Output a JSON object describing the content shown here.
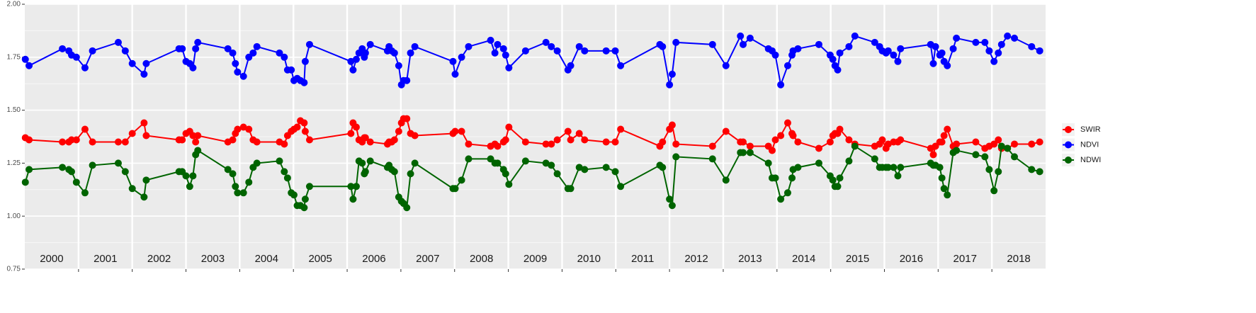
{
  "chart_data": {
    "type": "line",
    "xlim": [
      2000,
      2019
    ],
    "xticks": [
      2001,
      2002,
      2003,
      2004,
      2005,
      2006,
      2007,
      2008,
      2009,
      2010,
      2011,
      2012,
      2013,
      2014,
      2015,
      2016,
      2017,
      2018
    ],
    "year_labels": [
      "2000",
      "2001",
      "2002",
      "2003",
      "2004",
      "2005",
      "2006",
      "2007",
      "2008",
      "2009",
      "2010",
      "2011",
      "2012",
      "2013",
      "2014",
      "2015",
      "2016",
      "2017",
      "2018"
    ],
    "ylim": [
      0.75,
      2
    ],
    "yticks": [
      {
        "value": 0.75,
        "label": "0.75"
      },
      {
        "value": 1,
        "label": "1.00"
      },
      {
        "value": 1.25,
        "label": "1.25"
      },
      {
        "value": 1.5,
        "label": "1.50"
      },
      {
        "value": 1.75,
        "label": "1.75"
      },
      {
        "value": 2,
        "label": "2.00"
      }
    ],
    "grid": true,
    "legend": "right",
    "x": [
      2000.01,
      2000.08,
      2000.7,
      2000.82,
      2000.87,
      2000.96,
      2001.12,
      2001.26,
      2001.74,
      2001.87,
      2002.0,
      2002.22,
      2002.26,
      2002.87,
      2002.93,
      2003.0,
      2003.07,
      2003.13,
      2003.18,
      2003.22,
      2003.78,
      2003.87,
      2003.92,
      2003.96,
      2004.07,
      2004.17,
      2004.25,
      2004.32,
      2004.74,
      2004.83,
      2004.89,
      2004.96,
      2005.01,
      2005.07,
      2005.13,
      2005.2,
      2005.22,
      2005.3,
      2006.07,
      2006.11,
      2006.17,
      2006.22,
      2006.28,
      2006.32,
      2006.34,
      2006.43,
      2006.75,
      2006.78,
      2006.83,
      2006.88,
      2006.96,
      2007.01,
      2007.05,
      2007.11,
      2007.18,
      2007.26,
      2007.97,
      2008.01,
      2008.13,
      2008.26,
      2008.67,
      2008.75,
      2008.8,
      2008.91,
      2008.95,
      2009.01,
      2009.32,
      2009.7,
      2009.8,
      2009.91,
      2010.11,
      2010.16,
      2010.32,
      2010.42,
      2010.82,
      2010.99,
      2011.09,
      2011.82,
      2011.87,
      2012.0,
      2012.05,
      2012.12,
      2012.8,
      2013.05,
      2013.32,
      2013.37,
      2013.5,
      2013.84,
      2013.91,
      2013.97,
      2014.07,
      2014.2,
      2014.28,
      2014.3,
      2014.39,
      2014.78,
      2014.99,
      2015.04,
      2015.08,
      2015.13,
      2015.17,
      2015.34,
      2015.45,
      2015.82,
      2015.91,
      2015.96,
      2016.03,
      2016.07,
      2016.17,
      2016.25,
      2016.3,
      2016.86,
      2016.91,
      2016.95,
      2017.03,
      2017.07,
      2017.11,
      2017.17,
      2017.28,
      2017.34,
      2017.7,
      2017.87,
      2017.95,
      2018.04,
      2018.12,
      2018.18,
      2018.29,
      2018.42,
      2018.74,
      2018.89
    ],
    "series": [
      {
        "name": "SWIR",
        "color": "#ff0000",
        "values": [
          1.37,
          1.36,
          1.35,
          1.35,
          1.36,
          1.36,
          1.41,
          1.35,
          1.35,
          1.35,
          1.39,
          1.44,
          1.38,
          1.36,
          1.36,
          1.39,
          1.4,
          1.38,
          1.35,
          1.38,
          1.35,
          1.36,
          1.39,
          1.41,
          1.42,
          1.41,
          1.36,
          1.35,
          1.35,
          1.34,
          1.38,
          1.4,
          1.41,
          1.42,
          1.45,
          1.44,
          1.4,
          1.36,
          1.39,
          1.44,
          1.42,
          1.36,
          1.35,
          1.37,
          1.37,
          1.35,
          1.34,
          1.35,
          1.35,
          1.36,
          1.4,
          1.44,
          1.46,
          1.46,
          1.39,
          1.38,
          1.39,
          1.4,
          1.4,
          1.34,
          1.33,
          1.34,
          1.33,
          1.35,
          1.36,
          1.42,
          1.35,
          1.34,
          1.34,
          1.36,
          1.4,
          1.36,
          1.39,
          1.36,
          1.35,
          1.35,
          1.41,
          1.33,
          1.35,
          1.41,
          1.43,
          1.34,
          1.33,
          1.4,
          1.35,
          1.35,
          1.33,
          1.33,
          1.31,
          1.36,
          1.38,
          1.44,
          1.39,
          1.38,
          1.35,
          1.32,
          1.35,
          1.38,
          1.39,
          1.39,
          1.41,
          1.36,
          1.34,
          1.33,
          1.34,
          1.36,
          1.32,
          1.34,
          1.35,
          1.35,
          1.36,
          1.32,
          1.29,
          1.33,
          1.35,
          1.35,
          1.38,
          1.41,
          1.33,
          1.34,
          1.35,
          1.32,
          1.33,
          1.34,
          1.36,
          1.32,
          1.32,
          1.34,
          1.34,
          1.35
        ]
      },
      {
        "name": "NDVI",
        "color": "#0000ff",
        "values": [
          1.74,
          1.71,
          1.79,
          1.78,
          1.76,
          1.75,
          1.7,
          1.78,
          1.82,
          1.78,
          1.72,
          1.67,
          1.72,
          1.79,
          1.79,
          1.73,
          1.72,
          1.7,
          1.79,
          1.82,
          1.79,
          1.77,
          1.72,
          1.68,
          1.66,
          1.75,
          1.77,
          1.8,
          1.77,
          1.75,
          1.69,
          1.69,
          1.64,
          1.65,
          1.64,
          1.63,
          1.73,
          1.81,
          1.73,
          1.69,
          1.74,
          1.77,
          1.79,
          1.75,
          1.77,
          1.81,
          1.78,
          1.8,
          1.78,
          1.77,
          1.71,
          1.62,
          1.64,
          1.64,
          1.77,
          1.8,
          1.73,
          1.67,
          1.75,
          1.8,
          1.83,
          1.77,
          1.81,
          1.79,
          1.76,
          1.7,
          1.78,
          1.82,
          1.8,
          1.78,
          1.69,
          1.71,
          1.8,
          1.78,
          1.78,
          1.78,
          1.71,
          1.81,
          1.8,
          1.62,
          1.67,
          1.82,
          1.81,
          1.71,
          1.85,
          1.81,
          1.84,
          1.79,
          1.78,
          1.76,
          1.62,
          1.71,
          1.76,
          1.78,
          1.79,
          1.81,
          1.76,
          1.74,
          1.71,
          1.69,
          1.77,
          1.8,
          1.85,
          1.82,
          1.8,
          1.78,
          1.77,
          1.78,
          1.76,
          1.73,
          1.79,
          1.81,
          1.72,
          1.8,
          1.76,
          1.77,
          1.73,
          1.71,
          1.79,
          1.84,
          1.82,
          1.82,
          1.78,
          1.73,
          1.77,
          1.81,
          1.85,
          1.84,
          1.8,
          1.78
        ]
      },
      {
        "name": "NDWI",
        "color": "#006400",
        "values": [
          1.16,
          1.22,
          1.23,
          1.22,
          1.21,
          1.16,
          1.11,
          1.24,
          1.25,
          1.21,
          1.13,
          1.09,
          1.17,
          1.21,
          1.21,
          1.19,
          1.14,
          1.19,
          1.29,
          1.31,
          1.22,
          1.2,
          1.14,
          1.11,
          1.11,
          1.16,
          1.23,
          1.25,
          1.26,
          1.21,
          1.18,
          1.11,
          1.1,
          1.05,
          1.05,
          1.04,
          1.08,
          1.14,
          1.14,
          1.08,
          1.14,
          1.26,
          1.25,
          1.2,
          1.21,
          1.26,
          1.23,
          1.24,
          1.22,
          1.21,
          1.09,
          1.07,
          1.06,
          1.04,
          1.2,
          1.25,
          1.13,
          1.13,
          1.17,
          1.27,
          1.27,
          1.25,
          1.25,
          1.22,
          1.2,
          1.15,
          1.26,
          1.25,
          1.24,
          1.2,
          1.13,
          1.13,
          1.23,
          1.22,
          1.23,
          1.21,
          1.14,
          1.24,
          1.23,
          1.08,
          1.05,
          1.28,
          1.27,
          1.17,
          1.3,
          1.3,
          1.3,
          1.25,
          1.18,
          1.18,
          1.08,
          1.11,
          1.18,
          1.22,
          1.23,
          1.25,
          1.19,
          1.17,
          1.14,
          1.14,
          1.18,
          1.26,
          1.33,
          1.27,
          1.23,
          1.23,
          1.23,
          1.23,
          1.23,
          1.19,
          1.23,
          1.25,
          1.24,
          1.24,
          1.23,
          1.18,
          1.13,
          1.1,
          1.3,
          1.31,
          1.29,
          1.28,
          1.22,
          1.12,
          1.21,
          1.33,
          1.32,
          1.28,
          1.22,
          1.21
        ]
      }
    ]
  }
}
